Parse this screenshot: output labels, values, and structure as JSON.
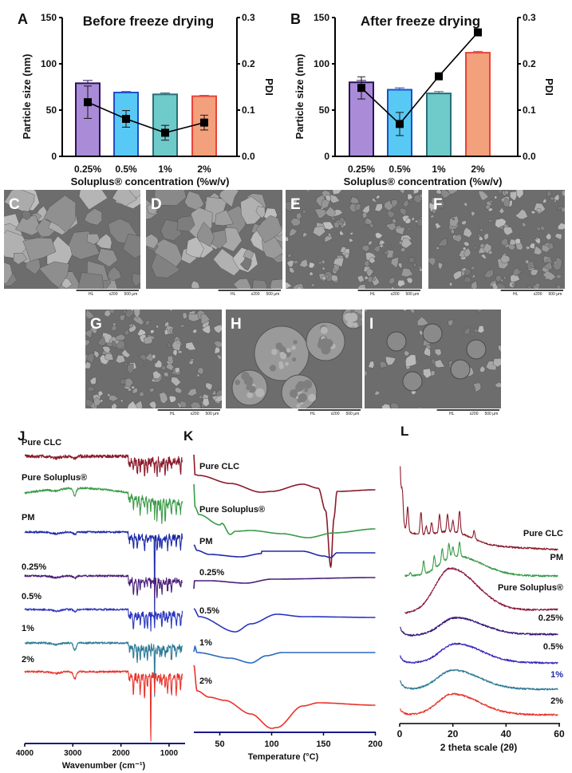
{
  "panel_labels": [
    "A",
    "B",
    "C",
    "D",
    "E",
    "F",
    "G",
    "H",
    "I",
    "J",
    "K",
    "L"
  ],
  "chart_data": [
    {
      "panel": "A",
      "type": "bar",
      "title": "Before freeze drying",
      "categories": [
        "0.25%",
        "0.5%",
        "1%",
        "2%"
      ],
      "xlabel": "Soluplus® concentration (%w/v)",
      "ylabel": "Particle size (nm)",
      "ylim": [
        0,
        150
      ],
      "yticks": [
        "0",
        "50",
        "100",
        "150"
      ],
      "y2label": "PDI",
      "y2lim": [
        0,
        0.3
      ],
      "y2ticks": [
        "0.0",
        "0.1",
        "0.2",
        "0.3"
      ],
      "bars": {
        "values": [
          79,
          69,
          67,
          65
        ],
        "errors": [
          3,
          1,
          1.5,
          1
        ]
      },
      "line": {
        "axis": "right",
        "values": [
          0.117,
          0.081,
          0.051,
          0.073
        ],
        "errors": [
          0.035,
          0.018,
          0.016,
          0.016
        ]
      },
      "bar_colors": [
        {
          "fill": "#a98bd8",
          "stroke": "#2a1458"
        },
        {
          "fill": "#58c9f5",
          "stroke": "#1f4fc9"
        },
        {
          "fill": "#6fcaca",
          "stroke": "#2a6e7a"
        },
        {
          "fill": "#f3a07c",
          "stroke": "#e8453a"
        }
      ]
    },
    {
      "panel": "B",
      "type": "bar",
      "title": "After freeze drying",
      "categories": [
        "0.25%",
        "0.5%",
        "1%",
        "2%"
      ],
      "xlabel": "Soluplus® concentration (%w/v)",
      "ylabel": "Particle size (nm)",
      "ylim": [
        0,
        150
      ],
      "yticks": [
        "0",
        "50",
        "100",
        "150"
      ],
      "y2label": "PDI",
      "y2lim": [
        0,
        0.3
      ],
      "y2ticks": [
        "0.0",
        "0.1",
        "0.2",
        "0.3"
      ],
      "bars": {
        "values": [
          80,
          72,
          68,
          112
        ],
        "errors": [
          2,
          2,
          2,
          1.5
        ]
      },
      "line": {
        "axis": "right",
        "values": [
          0.148,
          0.07,
          0.173,
          0.268
        ],
        "errors": [
          0.024,
          0.025,
          0.006,
          0.003
        ]
      },
      "bar_colors": [
        {
          "fill": "#a98bd8",
          "stroke": "#2a1458"
        },
        {
          "fill": "#58c9f5",
          "stroke": "#1f4fc9"
        },
        {
          "fill": "#6fcaca",
          "stroke": "#2a6e7a"
        },
        {
          "fill": "#f3a07c",
          "stroke": "#e8453a"
        }
      ]
    },
    {
      "panel": "J",
      "type": "line",
      "xlabel": "Wavenumber (cm⁻¹)",
      "xlim": [
        4000,
        650
      ],
      "xticks": [
        "4000",
        "3000",
        "2000",
        "1000"
      ],
      "series": [
        {
          "name": "Pure CLC",
          "color": "#8b1a2b"
        },
        {
          "name": "Pure Soluplus®",
          "color": "#3a9a48"
        },
        {
          "name": "PM",
          "color": "#1f2aa8"
        },
        {
          "name": "0.25%",
          "color": "#4a1f7a"
        },
        {
          "name": "0.5%",
          "color": "#2a35c0"
        },
        {
          "name": "1%",
          "color": "#2e7a98"
        },
        {
          "name": "2%",
          "color": "#e8332a"
        }
      ]
    },
    {
      "panel": "K",
      "type": "line",
      "xlabel": "Temperature (°C)",
      "xlim": [
        25,
        200
      ],
      "xticks": [
        "50",
        "100",
        "150",
        "200"
      ],
      "series": [
        {
          "name": "Pure CLC",
          "color": "#8b1a2b",
          "endotherm_peak_c": 157
        },
        {
          "name": "Pure Soluplus®",
          "color": "#3a9a48"
        },
        {
          "name": "PM",
          "color": "#1f2aa8",
          "endotherm_peak_c": 157
        },
        {
          "name": "0.25%",
          "color": "#4a1f7a"
        },
        {
          "name": "0.5%",
          "color": "#2a35c0"
        },
        {
          "name": "1%",
          "color": "#2a6ac0"
        },
        {
          "name": "2%",
          "color": "#e8332a"
        }
      ]
    },
    {
      "panel": "L",
      "type": "line",
      "xlabel": "2 theta scale (2θ)",
      "xlim": [
        0,
        60
      ],
      "xticks": [
        "0",
        "20",
        "40",
        "60"
      ],
      "series": [
        {
          "name": "Pure CLC",
          "color": "#8b1a2b"
        },
        {
          "name": "PM",
          "color": "#3a9a48"
        },
        {
          "name": "Pure Soluplus®",
          "color": "#8b1a3b"
        },
        {
          "name": "0.25%",
          "color": "#3a1a7a"
        },
        {
          "name": "0.5%",
          "color": "#3a2ac0"
        },
        {
          "name": "1%",
          "color": "#2e7a98",
          "label_color": "#1f2aa8"
        },
        {
          "name": "2%",
          "color": "#e8332a"
        }
      ]
    }
  ],
  "sem": [
    {
      "label": "C",
      "hl": "HL",
      "mag": "x200",
      "scale": "500 μm"
    },
    {
      "label": "D",
      "hl": "HL",
      "mag": "x200",
      "scale": "500 μm"
    },
    {
      "label": "E",
      "hl": "HL",
      "mag": "x200",
      "scale": "500 μm"
    },
    {
      "label": "F",
      "hl": "HL",
      "mag": "x200",
      "scale": "500 μm"
    },
    {
      "label": "G",
      "hl": "HL",
      "mag": "x200",
      "scale": "500 μm"
    },
    {
      "label": "H",
      "hl": "HL",
      "mag": "x200",
      "scale": "500 μm"
    },
    {
      "label": "I",
      "hl": "HL",
      "mag": "x200",
      "scale": "500 μm"
    }
  ]
}
